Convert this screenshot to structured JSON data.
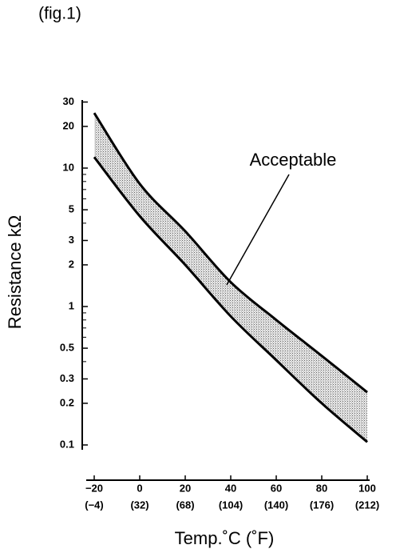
{
  "chart_data": {
    "type": "line",
    "title": "(fig.1)",
    "x_label": "Temp.˚C (˚F)",
    "y_label": "Resistance kΩ",
    "annotation": "Acceptable",
    "log_y": true,
    "band_fill": true,
    "x": [
      -20,
      0,
      20,
      40,
      60,
      80,
      100
    ],
    "series": [
      {
        "name": "upper limit",
        "color": "#000000",
        "values": [
          25,
          7.7,
          3.5,
          1.5,
          0.8,
          0.44,
          0.24
        ]
      },
      {
        "name": "lower limit",
        "color": "#000000",
        "values": [
          12,
          4.5,
          2.0,
          0.85,
          0.41,
          0.2,
          0.105
        ]
      }
    ],
    "xlim": [
      -20,
      100
    ],
    "xticks": [
      {
        "value": -20,
        "label": "−20"
      },
      0,
      20,
      40,
      60,
      80,
      100
    ],
    "xtick_secondary_labels": [
      "(−4)",
      "(32)",
      "(68)",
      "(104)",
      "(140)",
      "(176)",
      "(212)"
    ],
    "ylim": [
      0.1,
      30
    ],
    "yticks": [
      0.1,
      0.2,
      0.3,
      0.5,
      1,
      2,
      3,
      5,
      10,
      20,
      30
    ],
    "minor_yticks": [
      0.4,
      0.6,
      0.7,
      0.8,
      0.9,
      4,
      6,
      7,
      8,
      9
    ]
  }
}
